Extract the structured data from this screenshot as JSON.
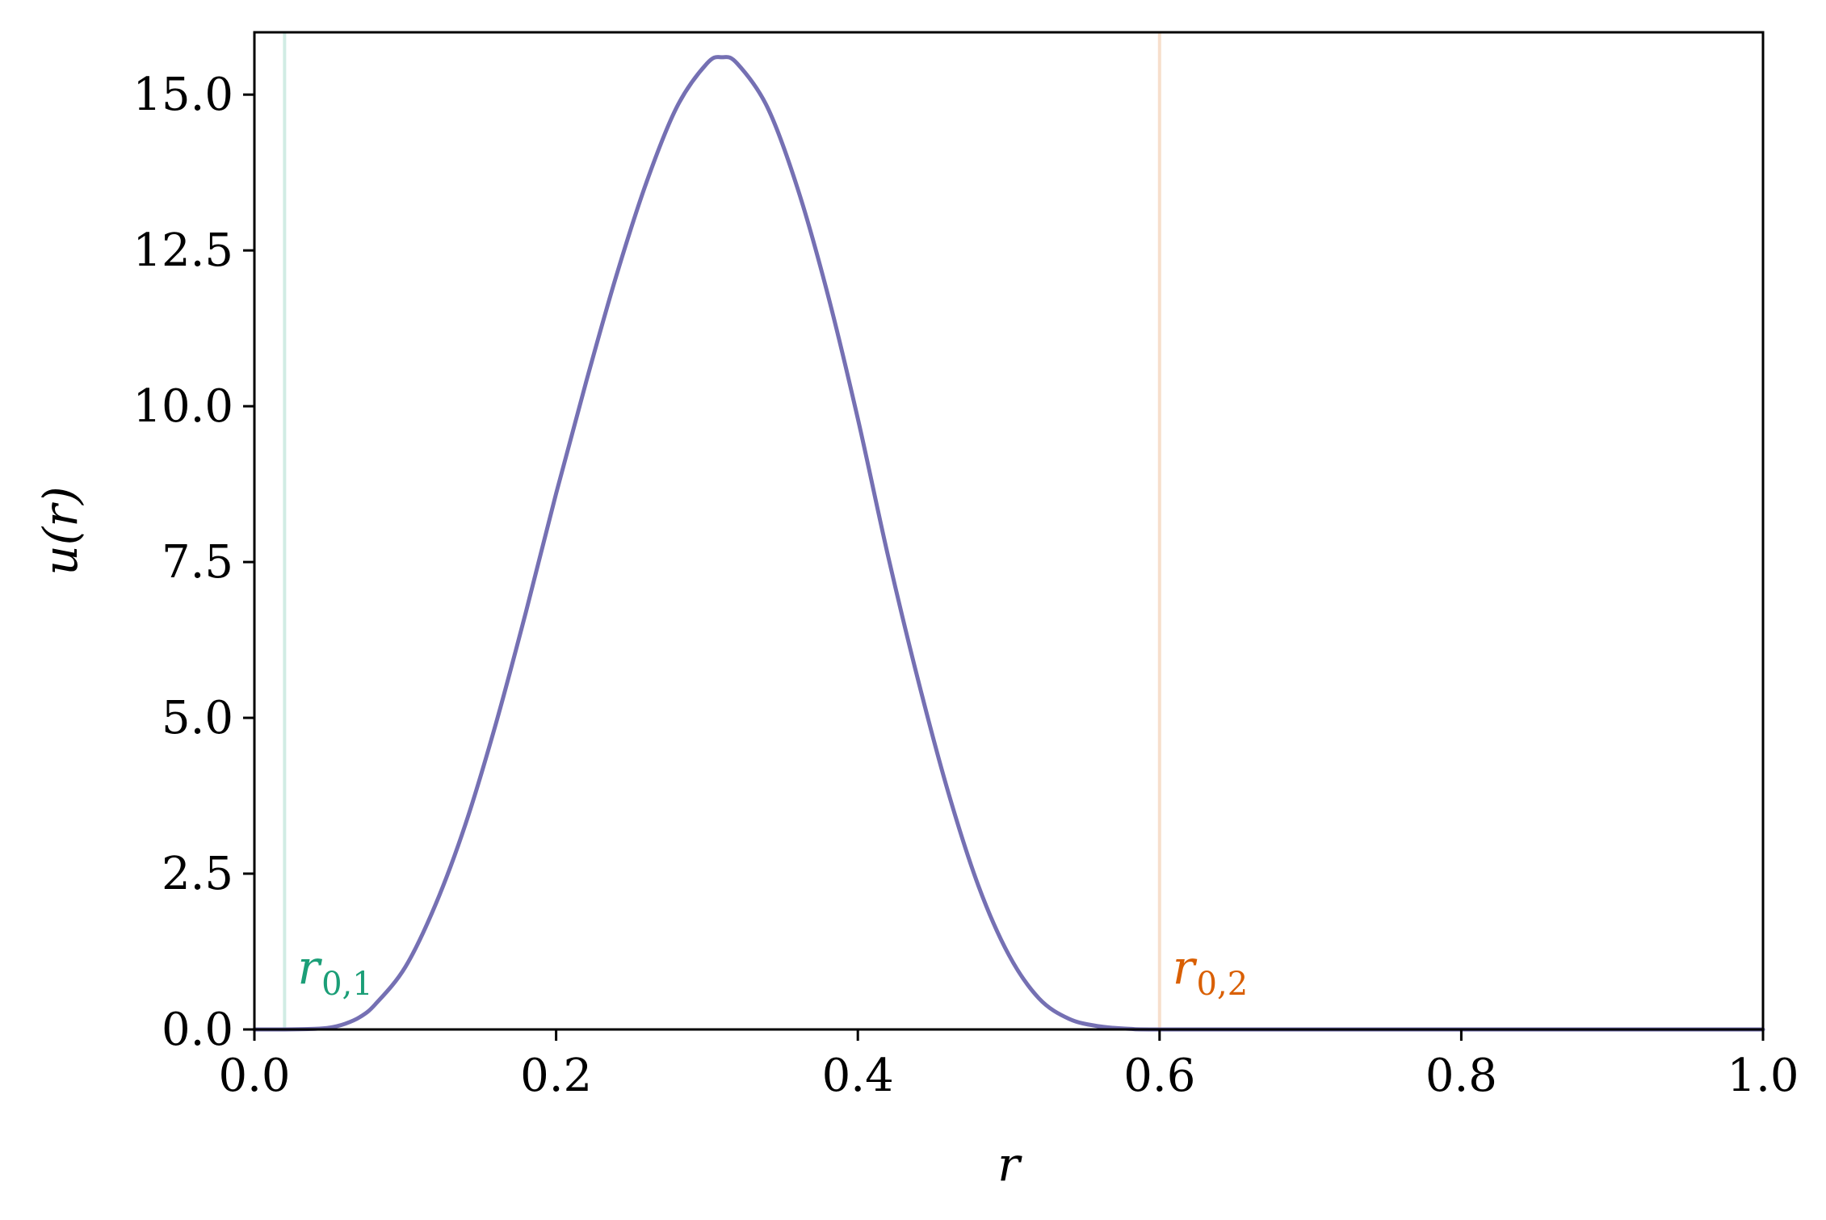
{
  "chart_data": {
    "type": "line",
    "title": "",
    "xlabel": "r",
    "ylabel": "u(r)",
    "xlim": [
      0.0,
      1.0
    ],
    "ylim": [
      0.0,
      16.0
    ],
    "x_ticks": [
      0.0,
      0.2,
      0.4,
      0.6,
      0.8,
      1.0
    ],
    "x_tick_labels": [
      "0.0",
      "0.2",
      "0.4",
      "0.6",
      "0.8",
      "1.0"
    ],
    "y_ticks": [
      0.0,
      2.5,
      5.0,
      7.5,
      10.0,
      12.5,
      15.0
    ],
    "y_tick_labels": [
      "0.0",
      "2.5",
      "5.0",
      "7.5",
      "10.0",
      "12.5",
      "15.0"
    ],
    "grid": false,
    "legend": "none",
    "series": [
      {
        "color": "#7570b3",
        "x": [
          0.0,
          0.02,
          0.04,
          0.05,
          0.06,
          0.07,
          0.08,
          0.1,
          0.12,
          0.14,
          0.16,
          0.18,
          0.2,
          0.22,
          0.24,
          0.26,
          0.28,
          0.3,
          0.31,
          0.32,
          0.34,
          0.36,
          0.38,
          0.4,
          0.42,
          0.44,
          0.46,
          0.48,
          0.5,
          0.52,
          0.54,
          0.56,
          0.58,
          0.6,
          0.7,
          0.8,
          0.9,
          1.0
        ],
        "y": [
          0.0,
          0.0,
          0.01,
          0.03,
          0.09,
          0.2,
          0.4,
          1.0,
          2.0,
          3.3,
          4.9,
          6.7,
          8.6,
          10.4,
          12.1,
          13.6,
          14.8,
          15.5,
          15.6,
          15.5,
          14.8,
          13.5,
          11.8,
          9.8,
          7.6,
          5.6,
          3.8,
          2.3,
          1.2,
          0.5,
          0.17,
          0.05,
          0.01,
          0.0,
          0.0,
          0.0,
          0.0,
          0.0
        ]
      }
    ],
    "vertical_markers": [
      {
        "x": 0.02,
        "label": "r",
        "subscript": "0,1",
        "color": "#1b9e77",
        "label_y": 1.0
      },
      {
        "x": 0.6,
        "label": "r",
        "subscript": "0,2",
        "color": "#d95f02",
        "label_y": 1.0
      }
    ]
  }
}
